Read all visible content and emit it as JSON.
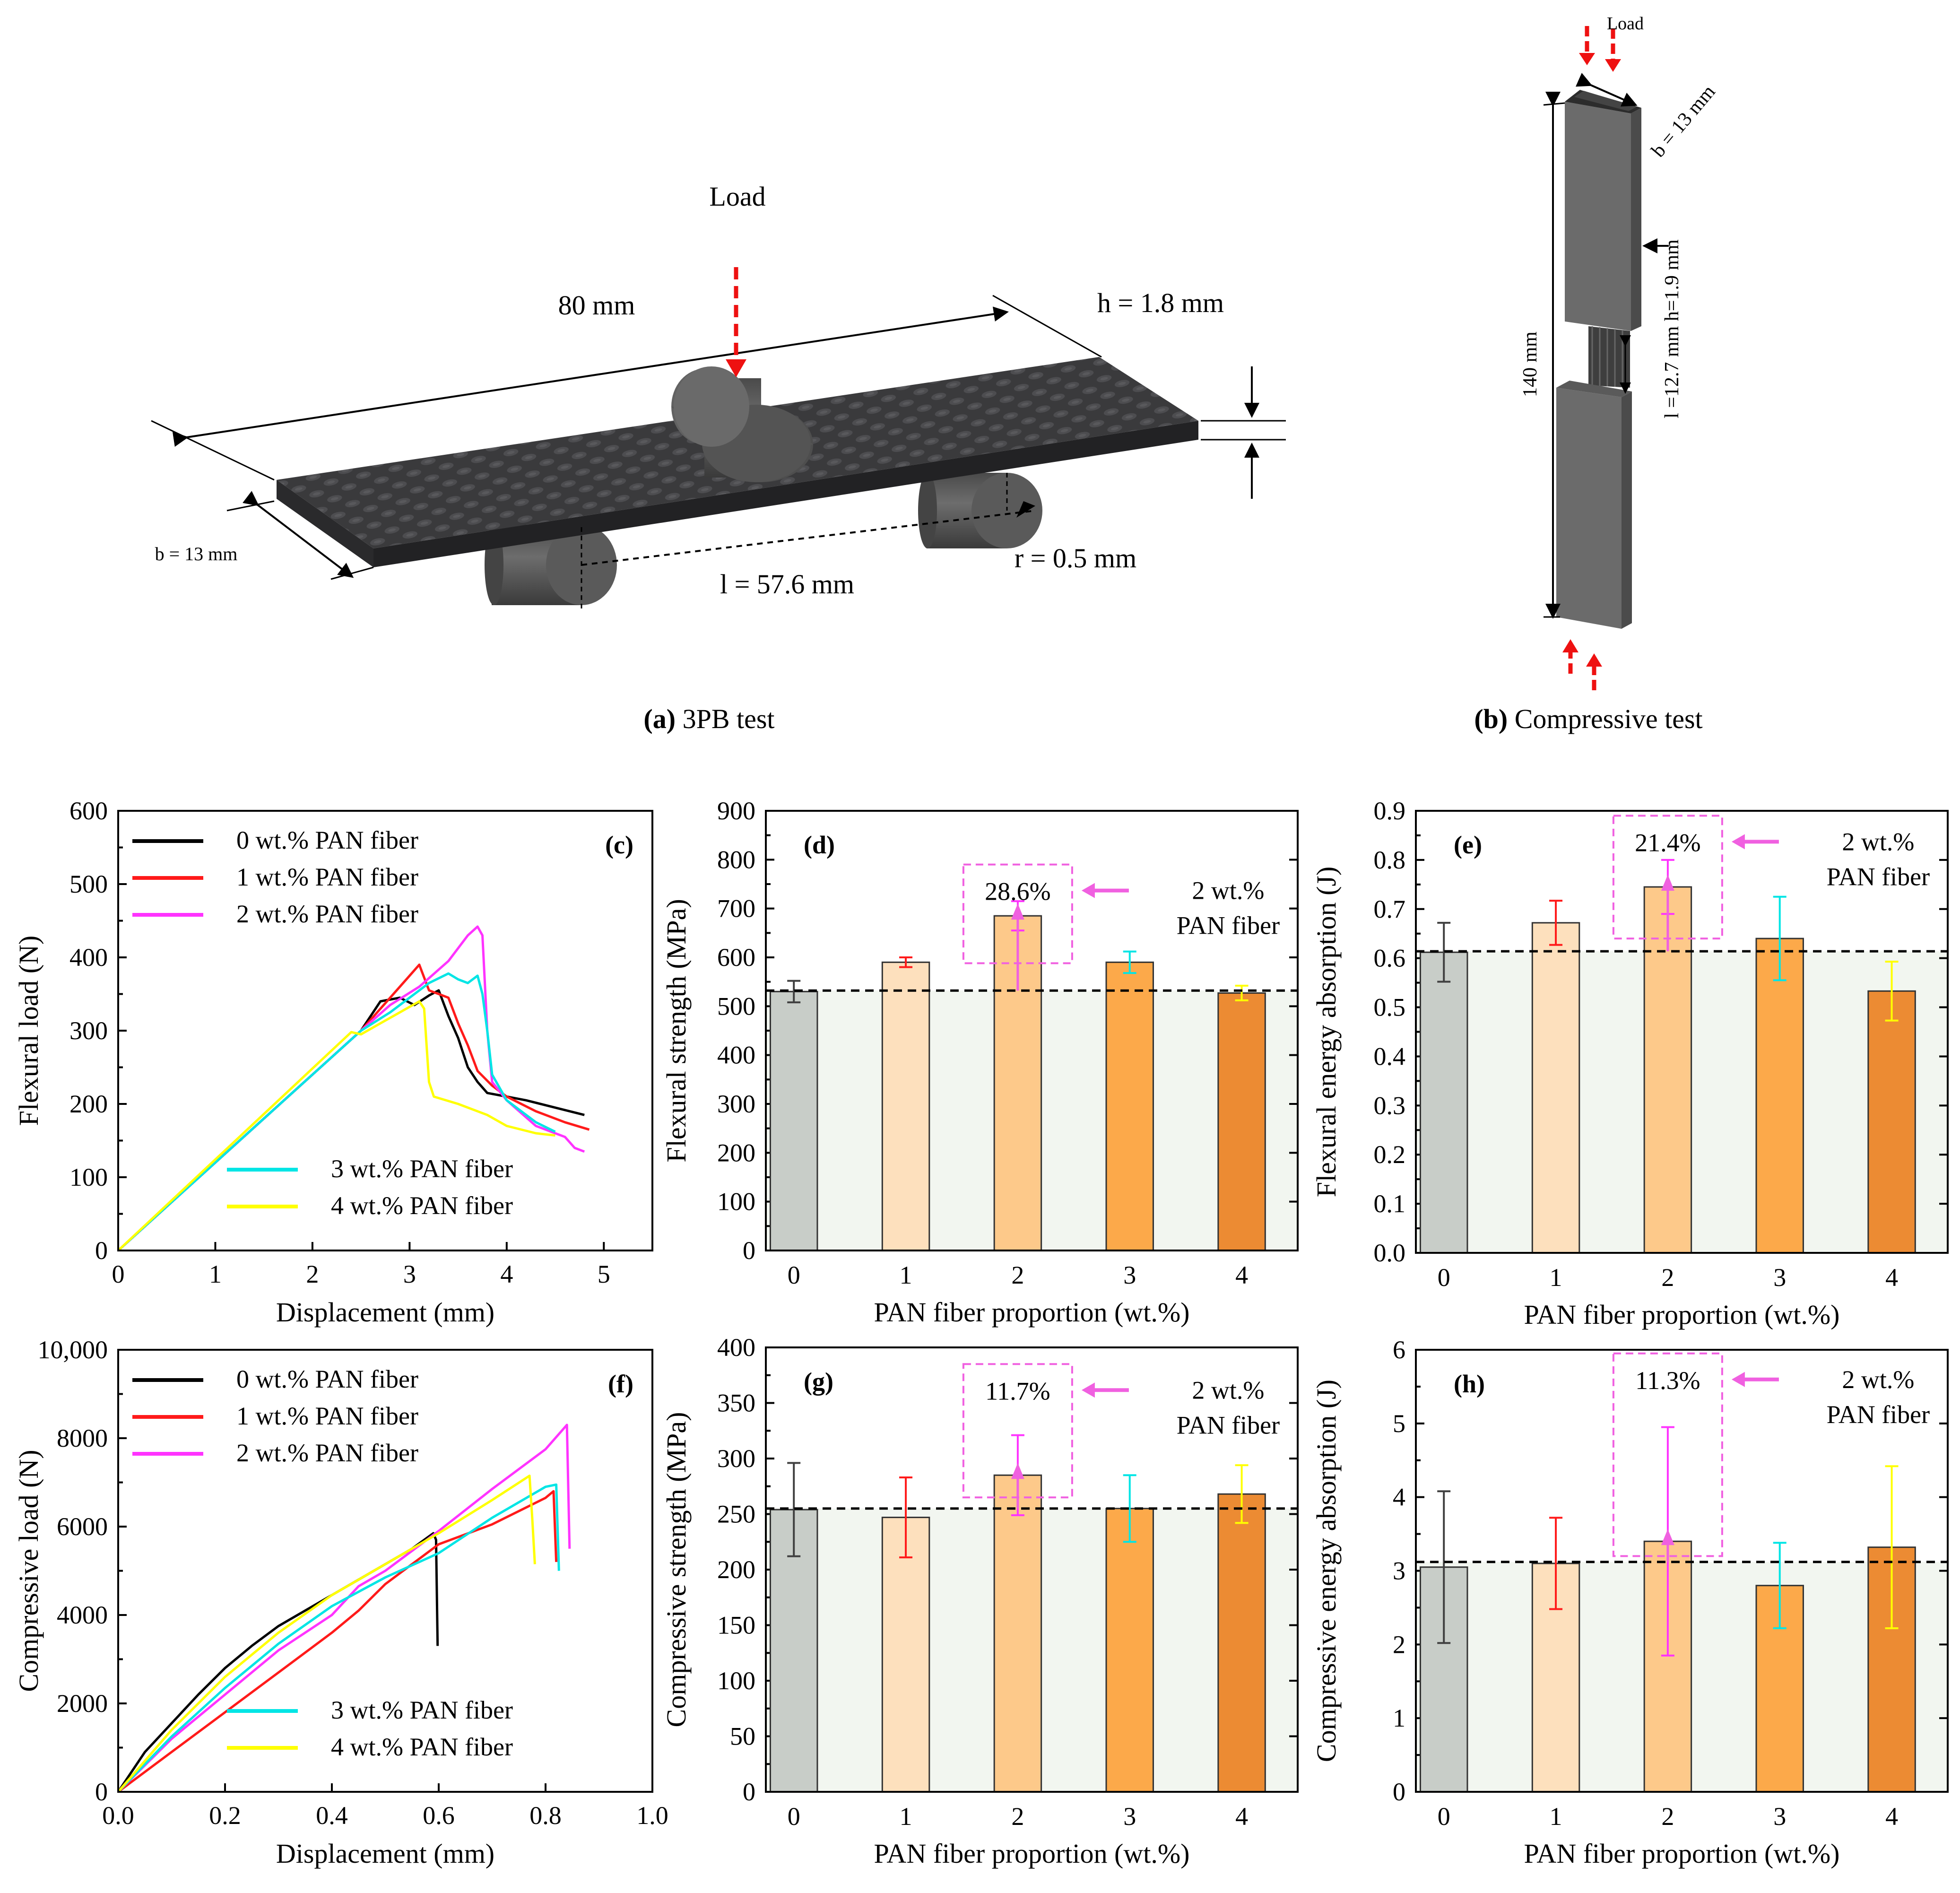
{
  "colors": {
    "c0": "#000000",
    "c1": "#ff1a1a",
    "c2": "#ff33ff",
    "c3": "#00e5e5",
    "c4": "#ffff00",
    "b0": "#c8cdc8",
    "b1": "#fde0bd",
    "b2": "#fdc98a",
    "b3": "#fca94a",
    "b4": "#ec8b33",
    "bg": "#f2f6f0",
    "annot": "#f060e0",
    "load_arrow": "#ee1111",
    "specimen_top": "#3a3a3c",
    "specimen_side": "#2a2a2c",
    "roller": "#555555",
    "grey_bar": "#6b6b6b"
  },
  "schematics": {
    "a": {
      "label_letter": "(a)",
      "label_text": " 3PB test",
      "load": "Load",
      "length": "80 mm",
      "height": "h = 1.8 mm",
      "width": "b = 13 mm",
      "span": "l = 57.6 mm",
      "radius": "r = 0.5 mm"
    },
    "b": {
      "label_letter": "(b)",
      "label_text": " Compressive test",
      "load": "Load",
      "width": "b = 13 mm",
      "dims": "l =12.7 mm h=1.9 mm",
      "length": "140 mm"
    }
  },
  "chart_data": [
    {
      "id": "c",
      "panel_label": "(c)",
      "type": "line",
      "xlabel": "Displacement (mm)",
      "ylabel": "Flexural load (N)",
      "xlim": [
        0,
        5.5
      ],
      "ylim": [
        0,
        600
      ],
      "xticks": [
        "0",
        "1",
        "2",
        "3",
        "4",
        "5"
      ],
      "xtick_values": [
        0,
        1,
        2,
        3,
        4,
        5
      ],
      "yticks": [
        "0",
        "100",
        "200",
        "300",
        "400",
        "500",
        "600"
      ],
      "ytick_values": [
        0,
        100,
        200,
        300,
        400,
        500,
        600
      ],
      "legend_top": [
        "0 wt.% PAN fiber",
        "1 wt.% PAN fiber",
        "2 wt.% PAN fiber"
      ],
      "legend_bottom": [
        "3 wt.% PAN fiber",
        "4 wt.% PAN fiber"
      ],
      "series": [
        {
          "name": "0 wt.% PAN fiber",
          "color": "c0",
          "points": [
            [
              0,
              0
            ],
            [
              2.5,
              300
            ],
            [
              2.7,
              340
            ],
            [
              2.9,
              345
            ],
            [
              3.05,
              335
            ],
            [
              3.2,
              348
            ],
            [
              3.3,
              355
            ],
            [
              3.4,
              320
            ],
            [
              3.5,
              290
            ],
            [
              3.6,
              250
            ],
            [
              3.7,
              230
            ],
            [
              3.8,
              215
            ],
            [
              4.0,
              210
            ],
            [
              4.2,
              205
            ],
            [
              4.5,
              195
            ],
            [
              4.8,
              185
            ]
          ]
        },
        {
          "name": "1 wt.% PAN fiber",
          "color": "c1",
          "points": [
            [
              0,
              0
            ],
            [
              2.5,
              300
            ],
            [
              2.8,
              345
            ],
            [
              3.0,
              375
            ],
            [
              3.1,
              390
            ],
            [
              3.2,
              355
            ],
            [
              3.3,
              350
            ],
            [
              3.4,
              345
            ],
            [
              3.5,
              310
            ],
            [
              3.6,
              280
            ],
            [
              3.7,
              245
            ],
            [
              3.85,
              225
            ],
            [
              4.0,
              210
            ],
            [
              4.3,
              190
            ],
            [
              4.6,
              175
            ],
            [
              4.85,
              165
            ]
          ]
        },
        {
          "name": "2 wt.% PAN fiber",
          "color": "c2",
          "points": [
            [
              0,
              0
            ],
            [
              2.5,
              300
            ],
            [
              2.8,
              335
            ],
            [
              3.1,
              360
            ],
            [
              3.4,
              395
            ],
            [
              3.6,
              430
            ],
            [
              3.7,
              442
            ],
            [
              3.75,
              430
            ],
            [
              3.8,
              300
            ],
            [
              3.85,
              230
            ],
            [
              4.0,
              205
            ],
            [
              4.3,
              170
            ],
            [
              4.5,
              160
            ],
            [
              4.6,
              155
            ],
            [
              4.7,
              140
            ],
            [
              4.8,
              135
            ]
          ]
        },
        {
          "name": "3 wt.% PAN fiber",
          "color": "c3",
          "points": [
            [
              0,
              0
            ],
            [
              2.5,
              300
            ],
            [
              2.8,
              325
            ],
            [
              3.0,
              345
            ],
            [
              3.2,
              365
            ],
            [
              3.4,
              378
            ],
            [
              3.5,
              370
            ],
            [
              3.6,
              365
            ],
            [
              3.7,
              375
            ],
            [
              3.75,
              350
            ],
            [
              3.8,
              300
            ],
            [
              3.85,
              240
            ],
            [
              4.0,
              205
            ],
            [
              4.3,
              175
            ],
            [
              4.5,
              162
            ]
          ]
        },
        {
          "name": "4 wt.% PAN fiber",
          "color": "c4",
          "points": [
            [
              0,
              0
            ],
            [
              2.4,
              298
            ],
            [
              2.5,
              295
            ],
            [
              2.7,
              310
            ],
            [
              2.9,
              325
            ],
            [
              3.1,
              340
            ],
            [
              3.15,
              330
            ],
            [
              3.2,
              230
            ],
            [
              3.25,
              210
            ],
            [
              3.5,
              200
            ],
            [
              3.8,
              185
            ],
            [
              4.0,
              170
            ],
            [
              4.3,
              160
            ],
            [
              4.5,
              157
            ]
          ]
        }
      ]
    },
    {
      "id": "d",
      "panel_label": "(d)",
      "type": "bar",
      "xlabel": "PAN fiber proportion (wt.%)",
      "ylabel": "Flexural strength (MPa)",
      "ylim": [
        0,
        900
      ],
      "yticks": [
        "0",
        "100",
        "200",
        "300",
        "400",
        "500",
        "600",
        "700",
        "800",
        "900"
      ],
      "ytick_values": [
        0,
        100,
        200,
        300,
        400,
        500,
        600,
        700,
        800,
        900
      ],
      "categories": [
        "0",
        "1",
        "2",
        "3",
        "4"
      ],
      "values": [
        530,
        590,
        685,
        590,
        527
      ],
      "errors": [
        22,
        10,
        30,
        22,
        15
      ],
      "err_colors": [
        "#404040",
        "#ff1a1a",
        "#ff33ff",
        "#00e5e5",
        "#ffff00"
      ],
      "bar_colors": [
        "b0",
        "b1",
        "b2",
        "b3",
        "b4"
      ],
      "baseline": 532,
      "annotation": {
        "percent": "28.6%",
        "line1": "2 wt.%",
        "line2": "PAN fiber",
        "box": [
          2,
          588,
          790
        ]
      }
    },
    {
      "id": "e",
      "panel_label": "(e)",
      "type": "bar",
      "xlabel": "PAN fiber proportion (wt.%)",
      "ylabel": "Flexural energy absorption (J)",
      "ylim": [
        0,
        0.9
      ],
      "yticks": [
        "0.0",
        "0.1",
        "0.2",
        "0.3",
        "0.4",
        "0.5",
        "0.6",
        "0.7",
        "0.8",
        "0.9"
      ],
      "ytick_values": [
        0,
        0.1,
        0.2,
        0.3,
        0.4,
        0.5,
        0.6,
        0.7,
        0.8,
        0.9
      ],
      "categories": [
        "0",
        "1",
        "2",
        "3",
        "4"
      ],
      "values": [
        0.612,
        0.672,
        0.745,
        0.64,
        0.533
      ],
      "errors": [
        0.06,
        0.045,
        0.055,
        0.085,
        0.06
      ],
      "err_colors": [
        "#404040",
        "#ff1a1a",
        "#ff33ff",
        "#00e5e5",
        "#ffff00"
      ],
      "bar_colors": [
        "b0",
        "b1",
        "b2",
        "b3",
        "b4"
      ],
      "baseline": 0.614,
      "annotation": {
        "percent": "21.4%",
        "line1": "2 wt.%",
        "line2": "PAN fiber",
        "box": [
          2,
          0.64,
          0.89
        ]
      }
    },
    {
      "id": "f",
      "panel_label": "(f)",
      "type": "line",
      "xlabel": "Displacement (mm)",
      "ylabel": "Compressive load (N)",
      "xlim": [
        0,
        1.0
      ],
      "ylim": [
        0,
        10000
      ],
      "xticks": [
        "0.0",
        "0.2",
        "0.4",
        "0.6",
        "0.8",
        "1.0"
      ],
      "xtick_values": [
        0,
        0.2,
        0.4,
        0.6,
        0.8,
        1.0
      ],
      "yticks": [
        "0",
        "2000",
        "4000",
        "6000",
        "8000",
        "10,000"
      ],
      "ytick_values": [
        0,
        2000,
        4000,
        6000,
        8000,
        10000
      ],
      "legend_top": [
        "0 wt.% PAN fiber",
        "1 wt.% PAN fiber",
        "2 wt.% PAN fiber"
      ],
      "legend_bottom": [
        "3 wt.% PAN fiber",
        "4 wt.% PAN fiber"
      ],
      "series": [
        {
          "name": "0 wt.% PAN fiber",
          "color": "c0",
          "points": [
            [
              0,
              0
            ],
            [
              0.05,
              900
            ],
            [
              0.1,
              1550
            ],
            [
              0.15,
              2200
            ],
            [
              0.2,
              2800
            ],
            [
              0.25,
              3300
            ],
            [
              0.3,
              3750
            ],
            [
              0.35,
              4100
            ],
            [
              0.4,
              4450
            ],
            [
              0.45,
              4800
            ],
            [
              0.5,
              5150
            ],
            [
              0.55,
              5500
            ],
            [
              0.59,
              5850
            ],
            [
              0.595,
              5700
            ],
            [
              0.598,
              3300
            ]
          ]
        },
        {
          "name": "1 wt.% PAN fiber",
          "color": "c1",
          "points": [
            [
              0,
              0
            ],
            [
              0.1,
              900
            ],
            [
              0.2,
              1800
            ],
            [
              0.3,
              2700
            ],
            [
              0.4,
              3600
            ],
            [
              0.45,
              4100
            ],
            [
              0.5,
              4700
            ],
            [
              0.55,
              5150
            ],
            [
              0.6,
              5600
            ],
            [
              0.7,
              6050
            ],
            [
              0.8,
              6650
            ],
            [
              0.815,
              6800
            ],
            [
              0.82,
              5200
            ]
          ]
        },
        {
          "name": "2 wt.% PAN fiber",
          "color": "c2",
          "points": [
            [
              0,
              0
            ],
            [
              0.1,
              1200
            ],
            [
              0.2,
              2200
            ],
            [
              0.3,
              3200
            ],
            [
              0.4,
              4000
            ],
            [
              0.45,
              4650
            ],
            [
              0.5,
              5000
            ],
            [
              0.6,
              5900
            ],
            [
              0.7,
              6850
            ],
            [
              0.8,
              7750
            ],
            [
              0.84,
              8300
            ],
            [
              0.845,
              5500
            ]
          ]
        },
        {
          "name": "3 wt.% PAN fiber",
          "color": "c3",
          "points": [
            [
              0,
              0
            ],
            [
              0.1,
              1250
            ],
            [
              0.2,
              2350
            ],
            [
              0.3,
              3350
            ],
            [
              0.4,
              4200
            ],
            [
              0.5,
              4850
            ],
            [
              0.6,
              5400
            ],
            [
              0.7,
              6200
            ],
            [
              0.8,
              6900
            ],
            [
              0.82,
              6950
            ],
            [
              0.825,
              5000
            ]
          ]
        },
        {
          "name": "4 wt.% PAN fiber",
          "color": "c4",
          "points": [
            [
              0,
              0
            ],
            [
              0.1,
              1400
            ],
            [
              0.2,
              2600
            ],
            [
              0.3,
              3600
            ],
            [
              0.4,
              4450
            ],
            [
              0.5,
              5150
            ],
            [
              0.6,
              5850
            ],
            [
              0.7,
              6600
            ],
            [
              0.77,
              7150
            ],
            [
              0.775,
              6200
            ],
            [
              0.78,
              5150
            ]
          ]
        }
      ]
    },
    {
      "id": "g",
      "panel_label": "(g)",
      "type": "bar",
      "xlabel": "PAN fiber proportion  (wt.%)",
      "ylabel": "Compressive strength (MPa)",
      "ylim": [
        0,
        400
      ],
      "yticks": [
        "0",
        "50",
        "100",
        "150",
        "200",
        "250",
        "300",
        "350",
        "400"
      ],
      "ytick_values": [
        0,
        50,
        100,
        150,
        200,
        250,
        300,
        350,
        400
      ],
      "categories": [
        "0",
        "1",
        "2",
        "3",
        "4"
      ],
      "values": [
        254,
        247,
        285,
        255,
        268
      ],
      "errors": [
        42,
        36,
        36,
        30,
        26
      ],
      "err_colors": [
        "#404040",
        "#ff1a1a",
        "#ff33ff",
        "#00e5e5",
        "#ffff00"
      ],
      "bar_colors": [
        "b0",
        "b1",
        "b2",
        "b3",
        "b4"
      ],
      "baseline": 255,
      "annotation": {
        "percent": "11.7%",
        "line1": "2 wt.%",
        "line2": "PAN fiber",
        "box": [
          2,
          265,
          385
        ]
      }
    },
    {
      "id": "h",
      "panel_label": "(h)",
      "type": "bar",
      "xlabel": "PAN fiber proportion (wt.%)",
      "ylabel": "Compressive energy absorption (J)",
      "ylim": [
        0,
        6
      ],
      "yticks": [
        "0",
        "1",
        "2",
        "3",
        "4",
        "5",
        "6"
      ],
      "ytick_values": [
        0,
        1,
        2,
        3,
        4,
        5,
        6
      ],
      "categories": [
        "0",
        "1",
        "2",
        "3",
        "4"
      ],
      "values": [
        3.05,
        3.1,
        3.4,
        2.8,
        3.32
      ],
      "errors": [
        1.03,
        0.62,
        1.55,
        0.58,
        1.1
      ],
      "err_colors": [
        "#404040",
        "#ff1a1a",
        "#ff33ff",
        "#00e5e5",
        "#ffff00"
      ],
      "bar_colors": [
        "b0",
        "b1",
        "b2",
        "b3",
        "b4"
      ],
      "baseline": 3.12,
      "annotation": {
        "percent": "11.3%",
        "line1": "2 wt.%",
        "line2": "PAN fiber",
        "box": [
          2,
          3.2,
          5.95
        ]
      }
    }
  ]
}
